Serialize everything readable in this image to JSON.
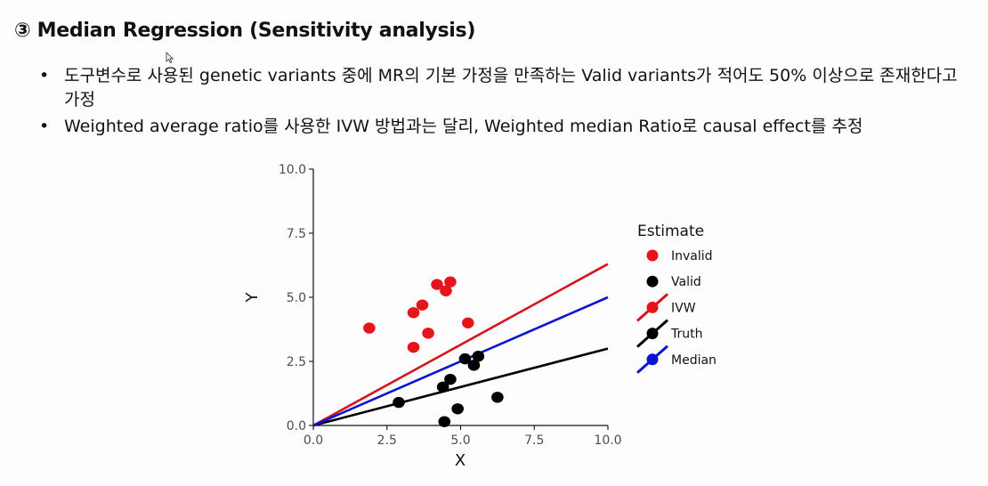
{
  "slide": {
    "title": "③ Median Regression (Sensitivity analysis)",
    "bullets": [
      "도구변수로 사용된 genetic variants 중에 MR의 기본 가정을 만족하는 Valid variants가 적어도 50% 이상으로 존재한다고 가정",
      "Weighted average ratio를 사용한 IVW 방법과는 달리, Weighted median Ratio로 causal effect를 추정"
    ]
  },
  "chart_data": {
    "type": "scatter",
    "title": "",
    "xlabel": "X",
    "ylabel": "Y",
    "xlim": [
      0,
      10
    ],
    "ylim": [
      0,
      10
    ],
    "xticks": [
      "0.0",
      "2.5",
      "5.0",
      "7.5",
      "10.0"
    ],
    "yticks": [
      "0.0",
      "2.5",
      "5.0",
      "7.5",
      "10.0"
    ],
    "grid": false,
    "legend": {
      "title": "Estimate",
      "placement": "right",
      "items": [
        {
          "label": "Invalid",
          "color": "#e8141c",
          "kind": "point"
        },
        {
          "label": "Valid",
          "color": "#000000",
          "kind": "point"
        },
        {
          "label": "IVW",
          "color": "#d6141e",
          "kind": "line"
        },
        {
          "label": "Truth",
          "color": "#000000",
          "kind": "line"
        },
        {
          "label": "Median",
          "color": "#0a14d2",
          "kind": "line"
        }
      ]
    },
    "series": [
      {
        "name": "Invalid",
        "kind": "point",
        "color": "#e8141c",
        "points": [
          [
            1.9,
            3.8
          ],
          [
            3.4,
            4.4
          ],
          [
            3.7,
            4.7
          ],
          [
            4.2,
            5.5
          ],
          [
            4.5,
            5.25
          ],
          [
            4.65,
            5.6
          ],
          [
            3.4,
            3.05
          ],
          [
            3.9,
            3.6
          ],
          [
            5.25,
            4.0
          ]
        ]
      },
      {
        "name": "Valid",
        "kind": "point",
        "color": "#000000",
        "points": [
          [
            2.9,
            0.9
          ],
          [
            4.4,
            1.5
          ],
          [
            4.65,
            1.8
          ],
          [
            4.45,
            0.15
          ],
          [
            4.9,
            0.65
          ],
          [
            5.15,
            2.6
          ],
          [
            5.45,
            2.35
          ],
          [
            5.6,
            2.7
          ],
          [
            6.25,
            1.1
          ]
        ]
      },
      {
        "name": "IVW",
        "kind": "line",
        "color": "#d6141e",
        "slope": 0.63
      },
      {
        "name": "Truth",
        "kind": "line",
        "color": "#000000",
        "slope": 0.3
      },
      {
        "name": "Median",
        "kind": "line",
        "color": "#0a14d2",
        "slope": 0.5
      }
    ]
  }
}
